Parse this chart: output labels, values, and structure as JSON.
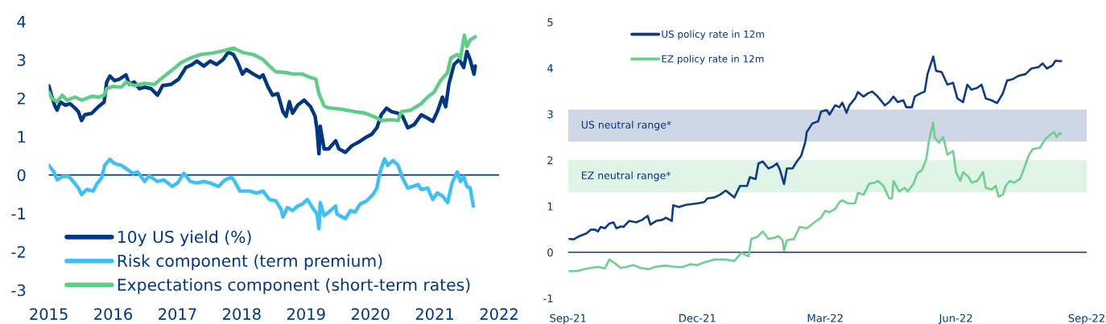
{
  "chart_data": [
    {
      "type": "line",
      "xlim": [
        2015,
        2022
      ],
      "xticks": [
        2015,
        2016,
        2017,
        2018,
        2019,
        2020,
        2021,
        2022
      ],
      "ylim": [
        -3,
        4
      ],
      "yticks": [
        -3,
        -2,
        -1,
        0,
        1,
        2,
        3,
        4
      ],
      "legend": "bottom left",
      "ref_lines": [
        {
          "axis": "y",
          "value": 0,
          "color": "#003781"
        }
      ],
      "series": [
        {
          "name": "10y US yield (%)",
          "color": "#003781",
          "x": [
            2015.0,
            2015.05,
            2015.1,
            2015.13,
            2015.18,
            2015.26,
            2015.33,
            2015.41,
            2015.46,
            2015.51,
            2015.56,
            2015.67,
            2015.77,
            2015.86,
            2015.9,
            2015.95,
            2016.02,
            2016.1,
            2016.2,
            2016.25,
            2016.33,
            2016.41,
            2016.49,
            2016.59,
            2016.69,
            2016.77,
            2016.9,
            2017.02,
            2017.13,
            2017.23,
            2017.3,
            2017.41,
            2017.51,
            2017.61,
            2017.71,
            2017.79,
            2017.87,
            2017.94,
            2018.01,
            2018.07,
            2018.18,
            2018.28,
            2018.33,
            2018.41,
            2018.48,
            2018.56,
            2018.64,
            2018.69,
            2018.74,
            2018.79,
            2018.87,
            2018.97,
            2019.07,
            2019.14,
            2019.17,
            2019.2,
            2019.22,
            2019.28,
            2019.35,
            2019.46,
            2019.51,
            2019.61,
            2019.71,
            2019.81,
            2019.92,
            2020.02,
            2020.1,
            2020.17,
            2020.25,
            2020.33,
            2020.43,
            2020.5,
            2020.58,
            2020.68,
            2020.79,
            2020.89,
            2020.97,
            2021.04,
            2021.12,
            2021.17,
            2021.22,
            2021.3,
            2021.38,
            2021.45,
            2021.5,
            2021.55,
            2021.61,
            2021.63
          ],
          "values": [
            2.33,
            2.03,
            1.78,
            1.69,
            1.9,
            1.82,
            1.86,
            1.74,
            1.65,
            1.42,
            1.57,
            1.61,
            1.78,
            1.9,
            2.42,
            2.58,
            2.46,
            2.5,
            2.61,
            2.37,
            2.42,
            2.25,
            2.29,
            2.25,
            2.08,
            2.33,
            2.36,
            2.5,
            2.8,
            2.88,
            2.97,
            2.84,
            2.97,
            2.88,
            3.01,
            3.2,
            3.14,
            2.92,
            2.63,
            2.75,
            2.63,
            2.54,
            2.61,
            2.29,
            2.08,
            2.12,
            1.65,
            1.53,
            1.91,
            1.61,
            1.82,
            1.95,
            1.78,
            1.53,
            1.19,
            0.55,
            1.27,
            0.68,
            0.68,
            0.89,
            0.68,
            0.59,
            0.76,
            0.85,
            0.97,
            1.06,
            1.23,
            1.57,
            1.74,
            1.65,
            1.61,
            1.53,
            1.23,
            1.31,
            1.57,
            1.48,
            1.4,
            1.65,
            2.03,
            1.78,
            2.37,
            2.88,
            3.01,
            2.8,
            3.22,
            3.01,
            2.63,
            2.84
          ]
        },
        {
          "name": "Risk component (term premium)",
          "color": "#41bff5",
          "x": [
            2015.0,
            2015.08,
            2015.13,
            2015.21,
            2015.31,
            2015.38,
            2015.46,
            2015.51,
            2015.59,
            2015.69,
            2015.74,
            2015.82,
            2015.87,
            2015.95,
            2016.02,
            2016.13,
            2016.23,
            2016.31,
            2016.38,
            2016.49,
            2016.56,
            2016.69,
            2016.79,
            2016.92,
            2017.0,
            2017.1,
            2017.2,
            2017.3,
            2017.41,
            2017.51,
            2017.64,
            2017.74,
            2017.84,
            2017.89,
            2017.97,
            2018.12,
            2018.23,
            2018.33,
            2018.43,
            2018.53,
            2018.61,
            2018.64,
            2018.71,
            2018.79,
            2018.87,
            2018.94,
            2019.02,
            2019.1,
            2019.17,
            2019.2,
            2019.22,
            2019.28,
            2019.35,
            2019.46,
            2019.48,
            2019.61,
            2019.69,
            2019.76,
            2019.84,
            2019.94,
            2020.04,
            2020.1,
            2020.15,
            2020.22,
            2020.27,
            2020.35,
            2020.43,
            2020.5,
            2020.58,
            2020.66,
            2020.74,
            2020.79,
            2020.89,
            2020.97,
            2021.04,
            2021.12,
            2021.2,
            2021.27,
            2021.35,
            2021.4,
            2021.45,
            2021.5,
            2021.55,
            2021.6
          ],
          "values": [
            0.25,
            0.08,
            -0.13,
            -0.04,
            -0.04,
            -0.17,
            -0.34,
            -0.51,
            -0.38,
            -0.42,
            -0.25,
            -0.08,
            0.25,
            0.41,
            0.3,
            0.25,
            0.13,
            0.04,
            0.08,
            -0.17,
            -0.02,
            -0.17,
            -0.13,
            -0.3,
            -0.21,
            0.04,
            -0.17,
            -0.21,
            -0.17,
            -0.21,
            -0.3,
            -0.13,
            -0.06,
            -0.17,
            -0.42,
            -0.42,
            -0.47,
            -0.42,
            -0.64,
            -0.68,
            -0.89,
            -1.1,
            -0.85,
            -0.93,
            -0.81,
            -0.76,
            -0.64,
            -0.85,
            -1.02,
            -1.4,
            -0.72,
            -1.06,
            -0.97,
            -0.81,
            -1.02,
            -1.14,
            -0.93,
            -0.97,
            -0.76,
            -0.68,
            -0.51,
            -0.34,
            0.08,
            0.42,
            0.25,
            0.38,
            0.25,
            -0.08,
            -0.34,
            -0.3,
            -0.25,
            -0.38,
            -0.34,
            -0.64,
            -0.47,
            -0.55,
            -0.72,
            -0.21,
            0.08,
            -0.17,
            -0.04,
            -0.3,
            -0.34,
            -0.81
          ]
        },
        {
          "name": "Expectations component (short-term rates)",
          "color": "#5fcd89",
          "x": [
            2015.0,
            2015.05,
            2015.13,
            2015.21,
            2015.28,
            2015.41,
            2015.51,
            2015.67,
            2015.77,
            2015.86,
            2015.9,
            2016.0,
            2016.13,
            2016.2,
            2016.33,
            2016.49,
            2016.64,
            2016.74,
            2016.9,
            2017.05,
            2017.2,
            2017.36,
            2017.56,
            2017.77,
            2017.87,
            2018.02,
            2018.18,
            2018.33,
            2018.43,
            2018.53,
            2018.69,
            2018.79,
            2018.94,
            2019.07,
            2019.15,
            2019.2,
            2019.28,
            2019.35,
            2019.56,
            2019.76,
            2019.92,
            2020.07,
            2020.17,
            2020.33,
            2020.43,
            2020.48,
            2020.63,
            2020.79,
            2020.89,
            2020.99,
            2021.09,
            2021.2,
            2021.25,
            2021.35,
            2021.4,
            2021.46,
            2021.5,
            2021.55,
            2021.63
          ],
          "values": [
            2.16,
            1.99,
            1.91,
            2.08,
            1.95,
            2.03,
            1.95,
            2.05,
            2.03,
            2.08,
            2.25,
            2.31,
            2.29,
            2.42,
            2.33,
            2.39,
            2.36,
            2.5,
            2.71,
            2.92,
            3.05,
            3.14,
            3.18,
            3.26,
            3.31,
            3.19,
            3.14,
            3.01,
            2.84,
            2.69,
            2.67,
            2.63,
            2.63,
            2.54,
            2.5,
            2.12,
            1.8,
            1.75,
            1.71,
            1.65,
            1.61,
            1.51,
            1.42,
            1.44,
            1.42,
            1.65,
            1.69,
            1.86,
            2.03,
            2.16,
            2.46,
            2.67,
            3.05,
            3.14,
            3.05,
            3.64,
            3.35,
            3.52,
            3.6
          ]
        }
      ]
    },
    {
      "type": "line",
      "xlim": [
        "2021-09-01",
        "2022-09-01"
      ],
      "xticks": [
        {
          "value": "2021-09-01",
          "label": "Sep-21"
        },
        {
          "value": "2021-12-01",
          "label": "Dec-21"
        },
        {
          "value": "2022-03-01",
          "label": "Mar-22"
        },
        {
          "value": "2022-06-01",
          "label": "Jun-22"
        },
        {
          "value": "2022-09-01",
          "label": "Sep-22"
        }
      ],
      "ylim": [
        -1,
        5
      ],
      "yticks": [
        -1,
        0,
        1,
        2,
        3,
        4,
        5
      ],
      "legend": "top left",
      "ref_lines": [
        {
          "axis": "y",
          "value": 0,
          "color": "#0f3b82"
        }
      ],
      "bands": [
        {
          "axis": "y",
          "from": 2.4,
          "to": 3.1,
          "label": "US neutral range*",
          "color": "#cfd7e6"
        },
        {
          "axis": "y",
          "from": 1.3,
          "to": 2.0,
          "label": "EZ neutral range*",
          "color": "#dff3e7"
        }
      ],
      "series": [
        {
          "name": "US policy rate in 12m",
          "color": "#0f3b82",
          "x": [
            "2021-09-02",
            "2021-09-05",
            "2021-09-09",
            "2021-09-14",
            "2021-09-17",
            "2021-09-20",
            "2021-09-22",
            "2021-09-24",
            "2021-09-27",
            "2021-09-30",
            "2021-10-03",
            "2021-10-05",
            "2021-10-08",
            "2021-10-10",
            "2021-10-14",
            "2021-10-19",
            "2021-10-23",
            "2021-10-27",
            "2021-10-29",
            "2021-11-02",
            "2021-11-06",
            "2021-11-09",
            "2021-11-13",
            "2021-11-14",
            "2021-11-18",
            "2021-11-23",
            "2021-12-01",
            "2021-12-06",
            "2021-12-08",
            "2021-12-13",
            "2021-12-17",
            "2021-12-21",
            "2021-12-23",
            "2021-12-27",
            "2021-12-31",
            "2022-01-05",
            "2022-01-07",
            "2022-01-11",
            "2022-01-13",
            "2022-01-16",
            "2022-01-20",
            "2022-01-23",
            "2022-01-26",
            "2022-01-28",
            "2022-01-31",
            "2022-02-02",
            "2022-02-06",
            "2022-02-09",
            "2022-02-12",
            "2022-02-15",
            "2022-02-16",
            "2022-02-20",
            "2022-02-24",
            "2022-02-26",
            "2022-03-02",
            "2022-03-04",
            "2022-03-08",
            "2022-03-11",
            "2022-03-13",
            "2022-03-16",
            "2022-03-18",
            "2022-03-22",
            "2022-03-24",
            "2022-03-28",
            "2022-03-31",
            "2022-04-03",
            "2022-04-06",
            "2022-04-08",
            "2022-04-12",
            "2022-04-15",
            "2022-04-18",
            "2022-04-21",
            "2022-04-25",
            "2022-04-27",
            "2022-05-01",
            "2022-05-03",
            "2022-05-07",
            "2022-05-10",
            "2022-05-12",
            "2022-05-16",
            "2022-05-18",
            "2022-05-22",
            "2022-05-26",
            "2022-05-30",
            "2022-06-02",
            "2022-06-06",
            "2022-06-09",
            "2022-06-12",
            "2022-06-16",
            "2022-06-19",
            "2022-06-22",
            "2022-06-26",
            "2022-06-30",
            "2022-07-04",
            "2022-07-07",
            "2022-07-11",
            "2022-07-15",
            "2022-07-20",
            "2022-07-24",
            "2022-07-29",
            "2022-08-01",
            "2022-08-04",
            "2022-08-08",
            "2022-08-10",
            "2022-08-14"
          ],
          "values": [
            0.29,
            0.28,
            0.35,
            0.41,
            0.49,
            0.49,
            0.45,
            0.55,
            0.52,
            0.62,
            0.65,
            0.52,
            0.56,
            0.55,
            0.68,
            0.65,
            0.7,
            0.79,
            0.6,
            0.68,
            0.7,
            0.75,
            0.68,
            1.02,
            0.98,
            1.03,
            1.06,
            1.09,
            1.17,
            1.19,
            1.25,
            1.34,
            1.29,
            1.19,
            1.44,
            1.44,
            1.63,
            1.59,
            1.93,
            1.97,
            1.82,
            1.86,
            1.93,
            1.8,
            1.48,
            1.82,
            1.82,
            1.97,
            2.09,
            2.4,
            2.61,
            2.8,
            2.84,
            3.05,
            3.09,
            2.99,
            3.19,
            3.15,
            3.25,
            3.03,
            3.19,
            3.34,
            3.48,
            3.38,
            3.45,
            3.49,
            3.41,
            3.34,
            3.19,
            3.26,
            3.38,
            3.26,
            3.3,
            3.15,
            3.15,
            3.38,
            3.45,
            3.49,
            3.87,
            4.25,
            3.94,
            3.91,
            3.64,
            3.68,
            3.34,
            3.26,
            3.64,
            3.53,
            3.57,
            3.64,
            3.34,
            3.3,
            3.24,
            3.45,
            3.73,
            3.76,
            3.83,
            3.87,
            3.99,
            4.02,
            4.1,
            3.99,
            4.06,
            4.16,
            4.15
          ]
        },
        {
          "name": "EZ policy rate in 12m",
          "color": "#6fcf8f",
          "x": [
            "2021-09-02",
            "2021-09-07",
            "2021-09-12",
            "2021-09-17",
            "2021-09-22",
            "2021-09-27",
            "2021-09-30",
            "2021-10-04",
            "2021-10-08",
            "2021-10-12",
            "2021-10-17",
            "2021-10-22",
            "2021-10-28",
            "2021-11-01",
            "2021-11-08",
            "2021-11-16",
            "2021-11-21",
            "2021-11-26",
            "2021-12-01",
            "2021-12-06",
            "2021-12-13",
            "2021-12-21",
            "2021-12-27",
            "2022-01-01",
            "2022-01-06",
            "2022-01-08",
            "2022-01-12",
            "2022-01-16",
            "2022-01-20",
            "2022-01-25",
            "2022-01-27",
            "2022-01-30",
            "2022-01-31",
            "2022-02-02",
            "2022-02-07",
            "2022-02-11",
            "2022-02-16",
            "2022-02-21",
            "2022-02-26",
            "2022-03-01",
            "2022-03-04",
            "2022-03-08",
            "2022-03-11",
            "2022-03-13",
            "2022-03-17",
            "2022-03-22",
            "2022-03-24",
            "2022-03-28",
            "2022-04-01",
            "2022-04-05",
            "2022-04-07",
            "2022-04-11",
            "2022-04-15",
            "2022-04-17",
            "2022-04-18",
            "2022-04-22",
            "2022-04-26",
            "2022-04-28",
            "2022-05-02",
            "2022-05-05",
            "2022-05-08",
            "2022-05-11",
            "2022-05-13",
            "2022-05-16",
            "2022-05-17",
            "2022-05-20",
            "2022-05-23",
            "2022-05-26",
            "2022-05-30",
            "2022-06-01",
            "2022-06-04",
            "2022-06-06",
            "2022-06-10",
            "2022-06-12",
            "2022-06-16",
            "2022-06-20",
            "2022-06-22",
            "2022-06-26",
            "2022-06-29",
            "2022-07-01",
            "2022-07-04",
            "2022-07-06",
            "2022-07-09",
            "2022-07-12",
            "2022-07-16",
            "2022-07-19",
            "2022-07-22",
            "2022-07-25",
            "2022-07-30",
            "2022-08-03",
            "2022-08-06",
            "2022-08-09",
            "2022-08-11",
            "2022-08-13",
            "2022-08-14"
          ],
          "values": [
            -0.41,
            -0.41,
            -0.37,
            -0.34,
            -0.32,
            -0.35,
            -0.16,
            -0.24,
            -0.34,
            -0.32,
            -0.28,
            -0.34,
            -0.37,
            -0.32,
            -0.29,
            -0.32,
            -0.32,
            -0.26,
            -0.28,
            -0.22,
            -0.16,
            -0.16,
            -0.19,
            -0.01,
            -0.09,
            0.29,
            0.33,
            0.45,
            0.29,
            0.32,
            0.35,
            0.26,
            0.03,
            0.26,
            0.29,
            0.55,
            0.52,
            0.64,
            0.75,
            0.9,
            0.87,
            0.94,
            1.09,
            1.13,
            1.06,
            1.06,
            1.29,
            1.25,
            1.49,
            1.51,
            1.55,
            1.44,
            1.17,
            1.17,
            1.55,
            1.32,
            1.4,
            1.32,
            1.48,
            1.72,
            1.78,
            2.01,
            2.42,
            2.82,
            2.5,
            2.38,
            2.5,
            2.12,
            2.2,
            1.74,
            1.55,
            1.74,
            1.63,
            1.51,
            1.55,
            1.74,
            1.4,
            1.36,
            1.44,
            1.21,
            1.25,
            1.44,
            1.55,
            1.51,
            1.59,
            1.82,
            2.09,
            2.24,
            2.27,
            2.46,
            2.54,
            2.61,
            2.5,
            2.59,
            2.57
          ]
        }
      ]
    }
  ]
}
